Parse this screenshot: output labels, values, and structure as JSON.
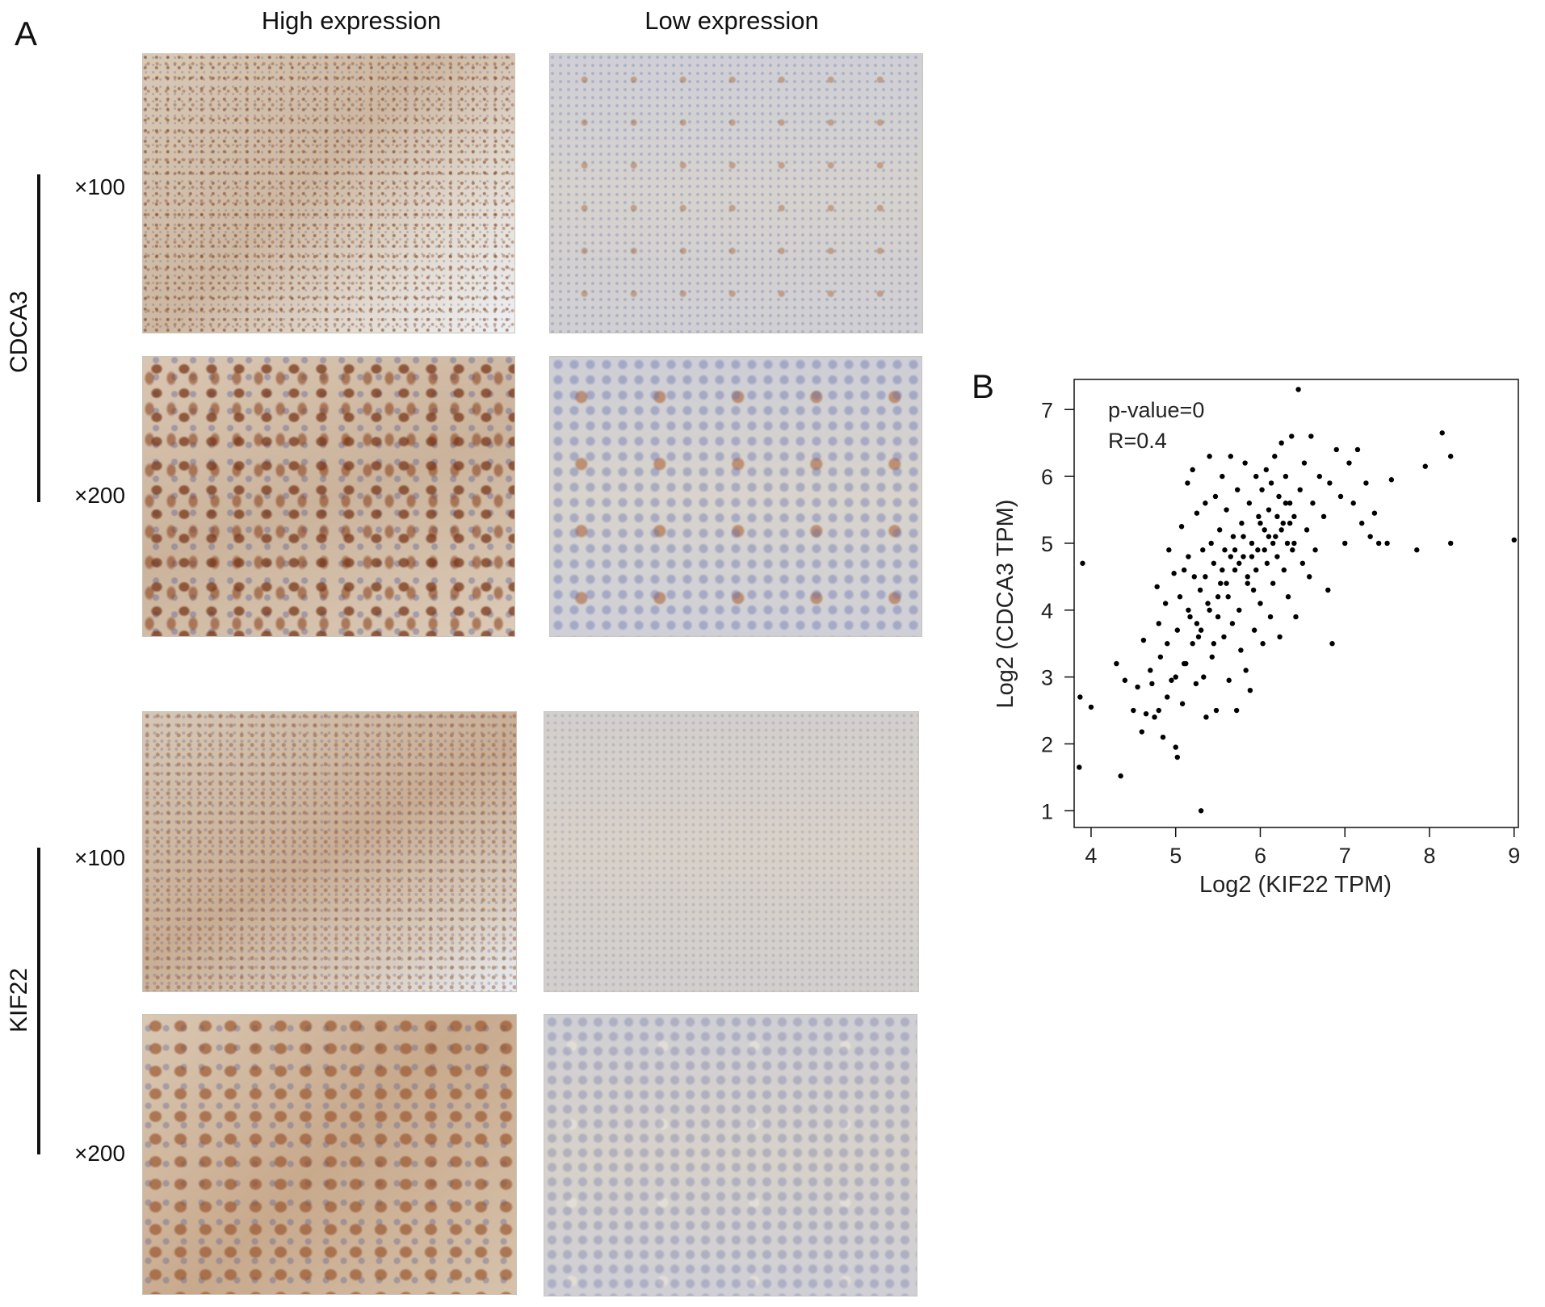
{
  "panel_a": {
    "letter": "A",
    "col_titles": [
      "High expression",
      "Low expression"
    ],
    "genes": [
      "CDCA3",
      "KIF22"
    ],
    "magnifications": [
      "×100",
      "×200",
      "×100",
      "×200"
    ]
  },
  "panel_b": {
    "letter": "B"
  },
  "chart_data": {
    "type": "scatter",
    "title": "",
    "annotations": [
      "p-value=0",
      "R=0.4"
    ],
    "xlabel": "Log2 (KIF22 TPM)",
    "ylabel": "Log2 (CDCA3 TPM)",
    "xlim": [
      3.8,
      9.05
    ],
    "ylim": [
      0.75,
      7.45
    ],
    "xticks": [
      4,
      5,
      6,
      7,
      8,
      9
    ],
    "yticks": [
      1,
      2,
      3,
      4,
      5,
      6,
      7
    ],
    "grid": false,
    "point_color": "#000000",
    "points": [
      [
        3.9,
        4.7
      ],
      [
        3.87,
        2.7
      ],
      [
        3.86,
        1.65
      ],
      [
        4.0,
        2.55
      ],
      [
        4.35,
        1.52
      ],
      [
        4.3,
        3.2
      ],
      [
        4.4,
        2.95
      ],
      [
        4.5,
        2.5
      ],
      [
        4.55,
        2.85
      ],
      [
        4.6,
        2.18
      ],
      [
        4.62,
        3.55
      ],
      [
        4.65,
        2.45
      ],
      [
        4.7,
        3.1
      ],
      [
        4.72,
        2.9
      ],
      [
        4.75,
        2.4
      ],
      [
        4.78,
        4.35
      ],
      [
        4.8,
        3.8
      ],
      [
        4.82,
        3.3
      ],
      [
        4.85,
        2.1
      ],
      [
        4.88,
        4.1
      ],
      [
        4.9,
        3.5
      ],
      [
        4.92,
        4.9
      ],
      [
        4.95,
        2.95
      ],
      [
        4.98,
        4.55
      ],
      [
        5.0,
        1.95
      ],
      [
        5.02,
        1.8
      ],
      [
        5.02,
        3.7
      ],
      [
        5.05,
        4.2
      ],
      [
        5.07,
        5.25
      ],
      [
        5.08,
        2.6
      ],
      [
        5.1,
        4.6
      ],
      [
        5.12,
        3.2
      ],
      [
        5.14,
        5.9
      ],
      [
        5.15,
        4.8
      ],
      [
        5.17,
        3.9
      ],
      [
        5.2,
        6.1
      ],
      [
        5.22,
        4.5
      ],
      [
        5.24,
        2.9
      ],
      [
        5.25,
        5.45
      ],
      [
        5.27,
        3.6
      ],
      [
        5.29,
        4.3
      ],
      [
        5.3,
        1.0
      ],
      [
        5.32,
        4.9
      ],
      [
        5.33,
        3.0
      ],
      [
        5.35,
        5.6
      ],
      [
        5.36,
        2.4
      ],
      [
        5.38,
        4.1
      ],
      [
        5.4,
        6.3
      ],
      [
        5.42,
        5.0
      ],
      [
        5.43,
        3.3
      ],
      [
        5.45,
        4.7
      ],
      [
        5.47,
        5.7
      ],
      [
        5.48,
        2.5
      ],
      [
        5.5,
        3.9
      ],
      [
        5.52,
        5.2
      ],
      [
        5.53,
        4.4
      ],
      [
        5.55,
        6.0
      ],
      [
        5.57,
        3.6
      ],
      [
        5.58,
        4.9
      ],
      [
        5.6,
        5.5
      ],
      [
        5.62,
        4.2
      ],
      [
        5.63,
        2.95
      ],
      [
        5.65,
        6.3
      ],
      [
        5.67,
        3.8
      ],
      [
        5.68,
        5.1
      ],
      [
        5.7,
        4.6
      ],
      [
        5.72,
        2.5
      ],
      [
        5.73,
        5.8
      ],
      [
        5.75,
        4.0
      ],
      [
        5.77,
        3.4
      ],
      [
        5.78,
        5.3
      ],
      [
        5.8,
        4.8
      ],
      [
        5.82,
        6.2
      ],
      [
        5.83,
        3.1
      ],
      [
        5.85,
        4.5
      ],
      [
        5.87,
        5.6
      ],
      [
        5.88,
        2.8
      ],
      [
        5.9,
        5.0
      ],
      [
        5.92,
        4.3
      ],
      [
        5.93,
        3.7
      ],
      [
        5.95,
        6.0
      ],
      [
        5.97,
        4.9
      ],
      [
        5.98,
        5.4
      ],
      [
        6.0,
        4.1
      ],
      [
        6.02,
        5.8
      ],
      [
        6.03,
        3.5
      ],
      [
        6.05,
        5.2
      ],
      [
        6.07,
        6.1
      ],
      [
        6.08,
        4.7
      ],
      [
        6.1,
        5.5
      ],
      [
        6.12,
        3.9
      ],
      [
        6.13,
        5.9
      ],
      [
        6.15,
        4.4
      ],
      [
        6.17,
        6.3
      ],
      [
        6.18,
        5.1
      ],
      [
        6.2,
        4.8
      ],
      [
        6.22,
        5.7
      ],
      [
        6.23,
        3.6
      ],
      [
        6.25,
        6.5
      ],
      [
        6.27,
        5.3
      ],
      [
        6.28,
        4.6
      ],
      [
        6.3,
        6.0
      ],
      [
        6.32,
        5.0
      ],
      [
        6.33,
        4.2
      ],
      [
        6.35,
        5.6
      ],
      [
        6.37,
        6.6
      ],
      [
        6.38,
        4.9
      ],
      [
        6.4,
        5.4
      ],
      [
        6.42,
        3.9
      ],
      [
        6.45,
        7.3
      ],
      [
        6.47,
        5.8
      ],
      [
        6.5,
        4.7
      ],
      [
        6.52,
        6.2
      ],
      [
        6.55,
        5.2
      ],
      [
        6.58,
        4.5
      ],
      [
        6.6,
        6.6
      ],
      [
        6.62,
        5.6
      ],
      [
        6.65,
        4.9
      ],
      [
        6.7,
        6.0
      ],
      [
        6.75,
        5.4
      ],
      [
        6.8,
        4.3
      ],
      [
        6.82,
        5.9
      ],
      [
        6.85,
        3.5
      ],
      [
        6.9,
        6.4
      ],
      [
        6.95,
        5.7
      ],
      [
        7.0,
        5.0
      ],
      [
        7.05,
        6.2
      ],
      [
        7.1,
        5.6
      ],
      [
        7.15,
        6.4
      ],
      [
        7.2,
        5.3
      ],
      [
        7.25,
        5.9
      ],
      [
        7.3,
        5.1
      ],
      [
        7.35,
        5.45
      ],
      [
        7.4,
        5.0
      ],
      [
        7.5,
        5.0
      ],
      [
        7.55,
        5.95
      ],
      [
        7.85,
        4.9
      ],
      [
        7.95,
        6.15
      ],
      [
        8.15,
        6.65
      ],
      [
        8.25,
        6.3
      ],
      [
        8.25,
        5.0
      ],
      [
        9.0,
        5.05
      ],
      [
        5.15,
        4.0
      ],
      [
        5.25,
        3.8
      ],
      [
        5.35,
        4.5
      ],
      [
        5.45,
        3.5
      ],
      [
        5.55,
        4.6
      ],
      [
        5.65,
        4.8
      ],
      [
        5.75,
        4.7
      ],
      [
        5.85,
        4.4
      ],
      [
        5.95,
        4.6
      ],
      [
        6.05,
        4.9
      ],
      [
        6.15,
        5.0
      ],
      [
        6.25,
        5.2
      ],
      [
        6.35,
        5.3
      ],
      [
        5.6,
        4.4
      ],
      [
        5.7,
        4.9
      ],
      [
        5.8,
        5.1
      ],
      [
        5.9,
        4.8
      ],
      [
        6.0,
        5.3
      ],
      [
        6.1,
        5.1
      ],
      [
        6.2,
        5.4
      ],
      [
        6.3,
        5.6
      ],
      [
        6.4,
        5.0
      ],
      [
        5.5,
        4.2
      ],
      [
        5.4,
        4.0
      ],
      [
        5.3,
        3.7
      ],
      [
        5.2,
        3.5
      ],
      [
        5.1,
        3.2
      ],
      [
        5.0,
        3.0
      ],
      [
        4.9,
        2.7
      ],
      [
        4.8,
        2.5
      ]
    ]
  }
}
